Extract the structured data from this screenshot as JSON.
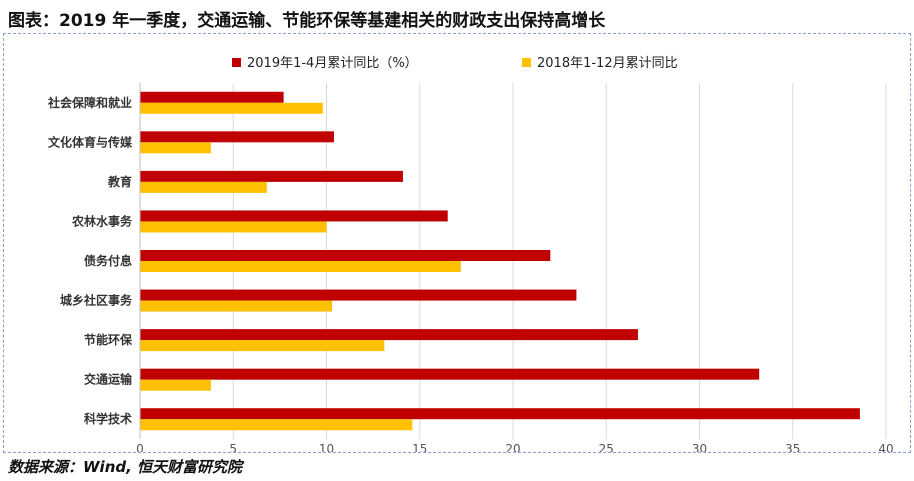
{
  "header": {
    "title": "图表：2019 年一季度，交通运输、节能环保等基建相关的财政支出保持高增长"
  },
  "footer": {
    "source": "数据来源：Wind, 恒天财富研究院"
  },
  "chart_data": {
    "type": "bar",
    "orientation": "horizontal",
    "categories": [
      "社会保障和就业",
      "文化体育与传媒",
      "教育",
      "农林水事务",
      "债务付息",
      "城乡社区事务",
      "节能环保",
      "交通运输",
      "科学技术"
    ],
    "series": [
      {
        "name": "2019年1-4月累计同比（%）",
        "color": "#c00000",
        "values": [
          7.7,
          10.4,
          14.1,
          16.5,
          22.0,
          23.4,
          26.7,
          33.2,
          38.6
        ]
      },
      {
        "name": "2018年1-12月累计同比",
        "color": "#ffc000",
        "values": [
          9.8,
          3.8,
          6.8,
          10.0,
          17.2,
          10.3,
          13.1,
          3.8,
          14.6
        ]
      }
    ],
    "xlim": [
      0,
      40
    ],
    "xticks": [
      0,
      5,
      10,
      15,
      20,
      25,
      30,
      35,
      40
    ],
    "grid": "vertical",
    "legend_position": "top"
  }
}
